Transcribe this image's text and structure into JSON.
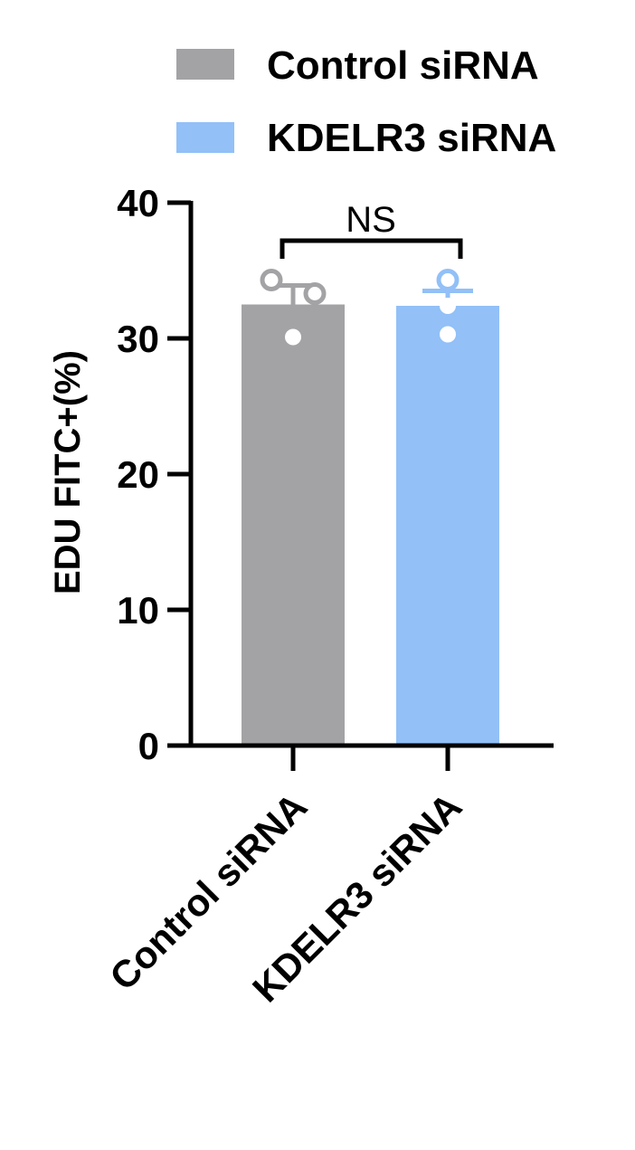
{
  "chart_data": {
    "type": "bar",
    "categories": [
      "Control siRNA",
      "KDELR3 siRNA"
    ],
    "ylabel": "EDU FITC+(%)",
    "ylim": [
      0,
      40
    ],
    "yticks": [
      "0",
      "10",
      "20",
      "30",
      "40"
    ],
    "legend": {
      "placement": "top",
      "entries": [
        "Control siRNA",
        "KDELR3 siRNA"
      ]
    },
    "series": [
      {
        "name": "Control siRNA",
        "color": "#a3a3a6",
        "mean": 32.5,
        "sd": 1.4,
        "points": [
          34.3,
          33.3,
          30.1
        ],
        "point_style": [
          "open",
          "open",
          "filled"
        ]
      },
      {
        "name": "KDELR3 siRNA",
        "color": "#92c0f7",
        "mean": 32.4,
        "sd": 1.1,
        "points": [
          34.3,
          32.4,
          30.3
        ],
        "point_style": [
          "open",
          "filled",
          "filled"
        ]
      }
    ],
    "annotations": [
      {
        "type": "significance-bracket",
        "text": "NS",
        "between": [
          "Control siRNA",
          "KDELR3 siRNA"
        ]
      }
    ],
    "grid": false
  }
}
